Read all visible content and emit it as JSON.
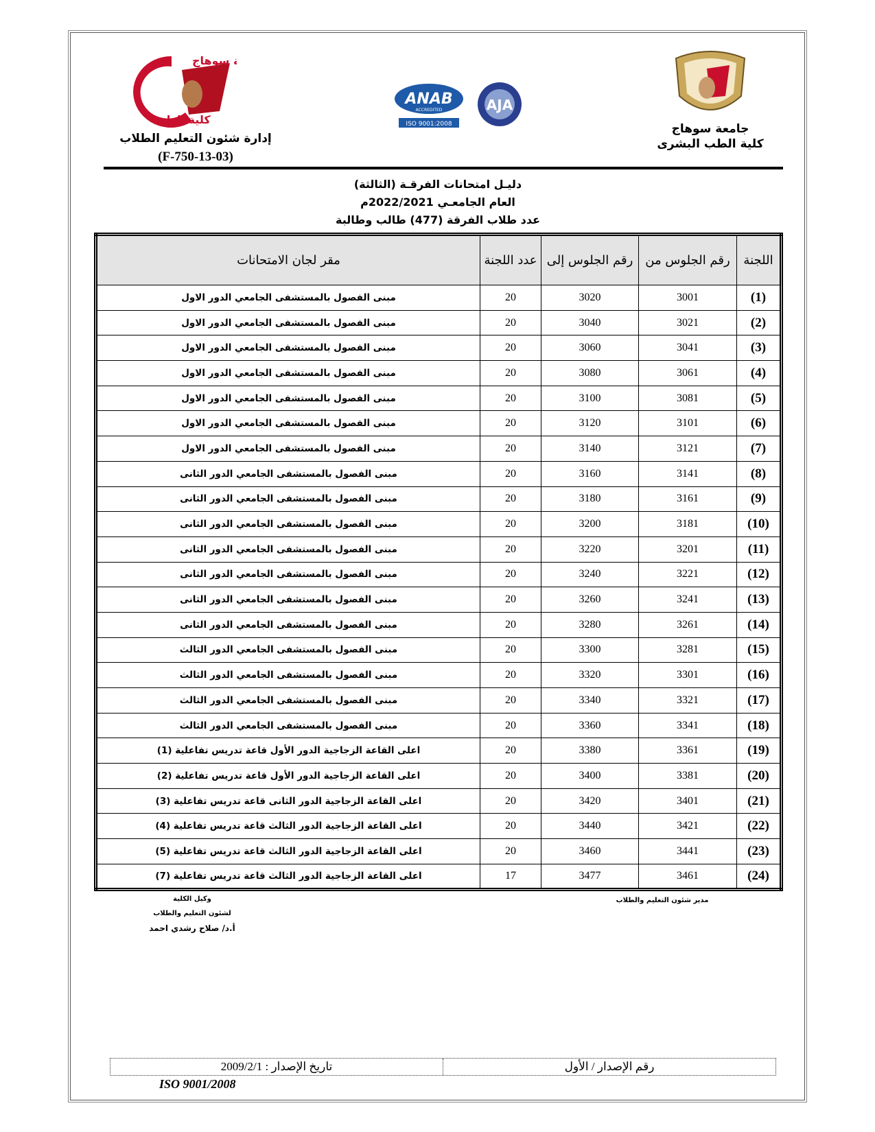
{
  "header": {
    "left_dept": "إدارة شئون التعليم الطلاب",
    "form_code": "(F-750-13-03)",
    "right_univ": "جامعة سوهاج",
    "right_faculty": "كلية الطب البشرى",
    "logo_left_text": "جامعة سوهاج كلية الطب",
    "logo_center_anab": "ANAB",
    "logo_center_accredited": "ACCREDITED",
    "logo_center_iso": "ISO 9001:2008",
    "logo_center_aja": "AJA"
  },
  "titles": [
    "دليـل امتحانات الفرقـة (الثالثة)",
    "العام الجامعـي 2022/2021م",
    "عدد طلاب الفرقة (477) طالب وطالبة"
  ],
  "table": {
    "headers": [
      "اللجنة",
      "رقم الجلوس من",
      "رقم الجلوس إلى",
      "عدد اللجنة",
      "مقر لجان الامتحانات"
    ],
    "rows": [
      [
        "(1)",
        "3001",
        "3020",
        "20",
        "مبنى الفصول بالمستشفى الجامعي الدور الاول"
      ],
      [
        "(2)",
        "3021",
        "3040",
        "20",
        "مبنى الفصول بالمستشفى الجامعي الدور الاول"
      ],
      [
        "(3)",
        "3041",
        "3060",
        "20",
        "مبنى الفصول بالمستشفى الجامعي الدور الاول"
      ],
      [
        "(4)",
        "3061",
        "3080",
        "20",
        "مبنى الفصول بالمستشفى الجامعي الدور الاول"
      ],
      [
        "(5)",
        "3081",
        "3100",
        "20",
        "مبنى الفصول بالمستشفى الجامعي الدور الاول"
      ],
      [
        "(6)",
        "3101",
        "3120",
        "20",
        "مبنى الفصول بالمستشفى الجامعي الدور الاول"
      ],
      [
        "(7)",
        "3121",
        "3140",
        "20",
        "مبنى الفصول بالمستشفى الجامعي الدور الاول"
      ],
      [
        "(8)",
        "3141",
        "3160",
        "20",
        "مبنى الفصول بالمستشفى الجامعي الدور الثانى"
      ],
      [
        "(9)",
        "3161",
        "3180",
        "20",
        "مبنى الفصول بالمستشفى الجامعي الدور الثانى"
      ],
      [
        "(10)",
        "3181",
        "3200",
        "20",
        "مبنى الفصول بالمستشفى الجامعي الدور الثانى"
      ],
      [
        "(11)",
        "3201",
        "3220",
        "20",
        "مبنى الفصول بالمستشفى الجامعي الدور الثانى"
      ],
      [
        "(12)",
        "3221",
        "3240",
        "20",
        "مبنى الفصول بالمستشفى الجامعي الدور الثانى"
      ],
      [
        "(13)",
        "3241",
        "3260",
        "20",
        "مبنى الفصول بالمستشفى الجامعي الدور الثانى"
      ],
      [
        "(14)",
        "3261",
        "3280",
        "20",
        "مبنى الفصول بالمستشفى الجامعي الدور الثانى"
      ],
      [
        "(15)",
        "3281",
        "3300",
        "20",
        "مبنى الفصول بالمستشفى الجامعي الدور الثالث"
      ],
      [
        "(16)",
        "3301",
        "3320",
        "20",
        "مبنى الفصول بالمستشفى الجامعي الدور الثالث"
      ],
      [
        "(17)",
        "3321",
        "3340",
        "20",
        "مبنى الفصول بالمستشفى الجامعي الدور الثالث"
      ],
      [
        "(18)",
        "3341",
        "3360",
        "20",
        "مبنى الفصول بالمستشفى الجامعي الدور الثالث"
      ],
      [
        "(19)",
        "3361",
        "3380",
        "20",
        "اعلى القاعة الزجاجية الدور الأول قاعة تدريس تفاعلية (1)"
      ],
      [
        "(20)",
        "3381",
        "3400",
        "20",
        "اعلى القاعة الزجاجية الدور الأول قاعة تدريس تفاعلية (2)"
      ],
      [
        "(21)",
        "3401",
        "3420",
        "20",
        "اعلى القاعة الزجاجية الدور الثانى قاعة تدريس تفاعلية (3)"
      ],
      [
        "(22)",
        "3421",
        "3440",
        "20",
        "اعلى القاعة الزجاجية الدور الثالث قاعة تدريس تفاعلية (4)"
      ],
      [
        "(23)",
        "3441",
        "3460",
        "20",
        "اعلى القاعة الزجاجية الدور الثالث قاعة تدريس تفاعلية (5)"
      ],
      [
        "(24)",
        "3461",
        "3477",
        "17",
        "اعلى القاعة الزجاجية الدور الثالث قاعة تدريس تفاعلية (7)"
      ]
    ]
  },
  "signatures": {
    "right": "مدير شئون التعليم والطلاب",
    "left": [
      "وكيل الكلية",
      "لشئون التعليم والطلاب",
      "أ.د/ صلاح رشدي احمد"
    ]
  },
  "footer": {
    "issue_no": "رقم الإصدار / الأول",
    "issue_date": "تاريخ الإصدار : 2009/2/1",
    "iso": "ISO 9001/2008"
  },
  "colors": {
    "logo_red": "#c8102e",
    "anab_blue": "#1e5aa8",
    "seal_gold": "#c9a85c"
  }
}
